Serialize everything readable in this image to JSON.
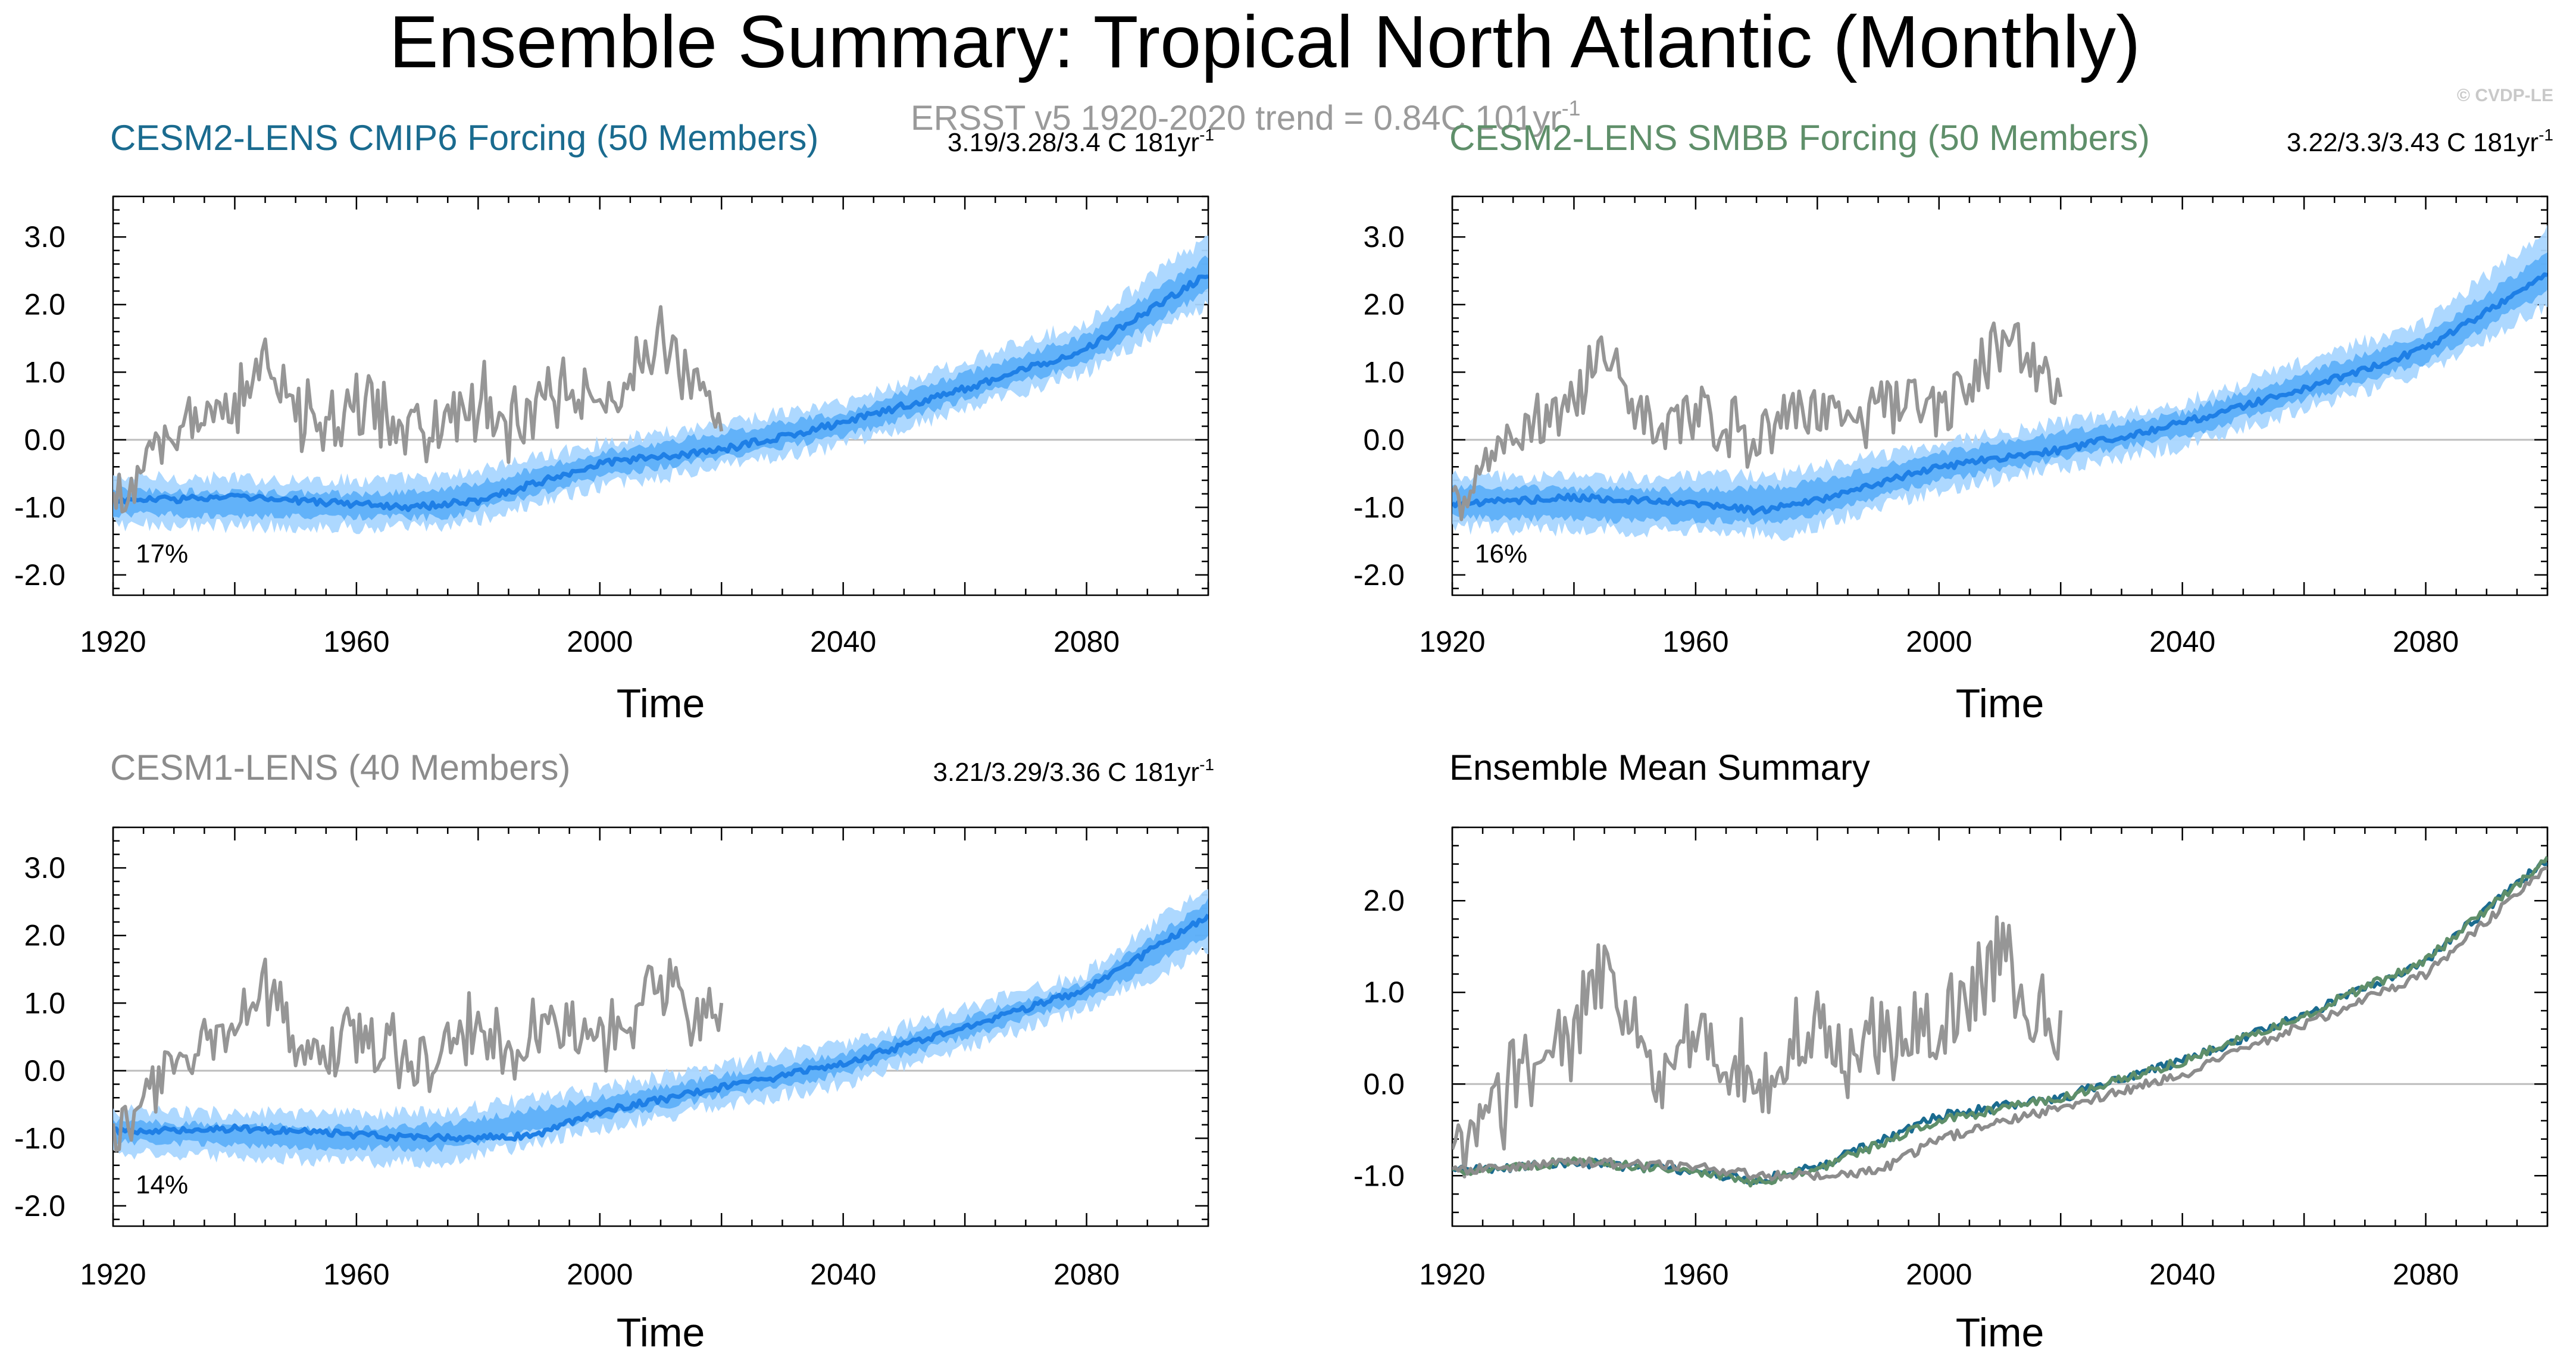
{
  "title": "Ensemble Summary: Tropical North Atlantic (Monthly)",
  "copyright": "© CVDP-LE",
  "observations": {
    "label": "ERSST v5 1920-2020 trend = 0.84C 101yr",
    "label_sup": "-1",
    "color": "#9a9a9a"
  },
  "colors": {
    "spread_outer": "#a9d6ff",
    "spread_inner": "#4aa6f7",
    "ensemble_mean": "#1e7fe6",
    "obs": "#969696",
    "cesm2_cmip6": "#1a6b8f",
    "cesm2_smbb": "#5f8f6a",
    "cesm1": "#8c8c8c",
    "zero_line": "#bdbdbd"
  },
  "chart_data": [
    {
      "type": "line",
      "panel": "top-left",
      "title": "CESM2-LENS CMIP6 Forcing (50 Members)",
      "title_color": "#1a6b8f",
      "trend_text": "3.19/3.28/3.4 C 181yr",
      "trend_sup": "-1",
      "percent_label": "17%",
      "xlabel": "Time",
      "ylabel": "",
      "xlim": [
        1920,
        2100
      ],
      "ylim": [
        -2.3,
        3.6
      ],
      "xticks": [
        1920,
        1960,
        2000,
        2040,
        2080
      ],
      "yticks": [
        -2.0,
        -1.0,
        0.0,
        1.0,
        2.0,
        3.0
      ],
      "ytick_labels": [
        "-2.0",
        "-1.0",
        "0.0",
        "1.0",
        "2.0",
        "3.0"
      ],
      "series": [
        {
          "name": "ensemble spread (full range)",
          "kind": "band",
          "x": [
            1920,
            1960,
            1975,
            2000,
            2040,
            2080,
            2100
          ],
          "lower": [
            -1.25,
            -1.3,
            -1.3,
            -0.7,
            -0.1,
            1.0,
            2.0
          ],
          "upper": [
            -0.55,
            -0.6,
            -0.55,
            -0.05,
            0.55,
            1.75,
            3.0
          ]
        },
        {
          "name": "ensemble spread (10th-90th)",
          "kind": "band",
          "x": [
            1920,
            1960,
            1975,
            2000,
            2040,
            2080,
            2100
          ],
          "lower": [
            -1.1,
            -1.15,
            -1.15,
            -0.55,
            0.05,
            1.15,
            2.2
          ],
          "upper": [
            -0.75,
            -0.8,
            -0.75,
            -0.2,
            0.4,
            1.55,
            2.7
          ]
        },
        {
          "name": "ensemble mean",
          "kind": "line",
          "x": [
            1920,
            1940,
            1960,
            1970,
            1980,
            2000,
            2020,
            2040,
            2060,
            2080,
            2100
          ],
          "values": [
            -0.9,
            -0.85,
            -0.95,
            -1.0,
            -0.9,
            -0.35,
            -0.15,
            0.25,
            0.75,
            1.35,
            2.45
          ]
        },
        {
          "name": "ERSST v5",
          "kind": "obs",
          "x": [
            1920,
            1925,
            1930,
            1935,
            1940,
            1945,
            1950,
            1955,
            1960,
            1965,
            1970,
            1975,
            1980,
            1985,
            1990,
            1995,
            2000,
            2005,
            2010,
            2015,
            2020
          ],
          "values": [
            -0.9,
            -0.5,
            0.1,
            0.3,
            0.5,
            1.3,
            0.4,
            0.1,
            0.5,
            0.3,
            0.0,
            0.3,
            0.6,
            0.2,
            0.5,
            0.7,
            0.5,
            0.8,
            1.5,
            0.9,
            0.6
          ]
        }
      ]
    },
    {
      "type": "line",
      "panel": "top-right",
      "title": "CESM2-LENS SMBB Forcing (50 Members)",
      "title_color": "#5f8f6a",
      "trend_text": "3.22/3.3/3.43 C 181yr",
      "trend_sup": "-1",
      "percent_label": "16%",
      "xlabel": "Time",
      "ylabel": "",
      "xlim": [
        1920,
        2100
      ],
      "ylim": [
        -2.3,
        3.6
      ],
      "xticks": [
        1920,
        1960,
        2000,
        2040,
        2080
      ],
      "yticks": [
        -2.0,
        -1.0,
        0.0,
        1.0,
        2.0,
        3.0
      ],
      "ytick_labels": [
        "-2.0",
        "-1.0",
        "0.0",
        "1.0",
        "2.0",
        "3.0"
      ],
      "series": [
        {
          "name": "ensemble spread (full range)",
          "kind": "band",
          "x": [
            1920,
            1960,
            1975,
            2000,
            2040,
            2080,
            2100
          ],
          "lower": [
            -1.3,
            -1.35,
            -1.4,
            -0.75,
            -0.1,
            1.0,
            2.0
          ],
          "upper": [
            -0.55,
            -0.55,
            -0.5,
            -0.05,
            0.55,
            1.75,
            3.1
          ]
        },
        {
          "name": "ensemble spread (10th-90th)",
          "kind": "band",
          "x": [
            1920,
            1960,
            1975,
            2000,
            2040,
            2080,
            2100
          ],
          "lower": [
            -1.15,
            -1.2,
            -1.2,
            -0.6,
            0.05,
            1.15,
            2.2
          ],
          "upper": [
            -0.7,
            -0.75,
            -0.7,
            -0.2,
            0.4,
            1.55,
            2.75
          ]
        },
        {
          "name": "ensemble mean",
          "kind": "line",
          "x": [
            1920,
            1940,
            1960,
            1970,
            1980,
            2000,
            2020,
            2040,
            2060,
            2080,
            2100
          ],
          "values": [
            -0.95,
            -0.85,
            -0.95,
            -1.05,
            -0.9,
            -0.4,
            -0.15,
            0.25,
            0.75,
            1.35,
            2.45
          ]
        },
        {
          "name": "ERSST v5",
          "kind": "obs",
          "x": [
            1920,
            1925,
            1930,
            1935,
            1940,
            1945,
            1950,
            1955,
            1960,
            1965,
            1970,
            1975,
            1980,
            1985,
            1990,
            1995,
            2000,
            2005,
            2010,
            2015,
            2020
          ],
          "values": [
            -0.9,
            -0.5,
            0.1,
            0.3,
            0.5,
            1.3,
            0.4,
            0.1,
            0.5,
            0.3,
            0.0,
            0.3,
            0.6,
            0.2,
            0.5,
            0.7,
            0.5,
            0.8,
            1.5,
            0.9,
            0.6
          ]
        }
      ]
    },
    {
      "type": "line",
      "panel": "bottom-left",
      "title": "CESM1-LENS (40 Members)",
      "title_color": "#8c8c8c",
      "trend_text": "3.21/3.29/3.36 C 181yr",
      "trend_sup": "-1",
      "percent_label": "14%",
      "xlabel": "Time",
      "ylabel": "",
      "xlim": [
        1920,
        2100
      ],
      "ylim": [
        -2.3,
        3.6
      ],
      "xticks": [
        1920,
        1960,
        2000,
        2040,
        2080
      ],
      "yticks": [
        -2.0,
        -1.0,
        0.0,
        1.0,
        2.0,
        3.0
      ],
      "ytick_labels": [
        "-2.0",
        "-1.0",
        "0.0",
        "1.0",
        "2.0",
        "3.0"
      ],
      "series": [
        {
          "name": "ensemble spread (full range)",
          "kind": "band",
          "x": [
            1920,
            1960,
            1975,
            2000,
            2040,
            2080,
            2100
          ],
          "lower": [
            -1.2,
            -1.35,
            -1.35,
            -0.85,
            -0.2,
            0.9,
            1.8
          ],
          "upper": [
            -0.6,
            -0.65,
            -0.6,
            -0.25,
            0.4,
            1.45,
            2.75
          ]
        },
        {
          "name": "ensemble spread (10th-90th)",
          "kind": "band",
          "x": [
            1920,
            1960,
            1975,
            2000,
            2040,
            2080,
            2100
          ],
          "lower": [
            -1.05,
            -1.15,
            -1.15,
            -0.7,
            -0.05,
            1.05,
            2.0
          ],
          "upper": [
            -0.75,
            -0.85,
            -0.8,
            -0.4,
            0.25,
            1.3,
            2.5
          ]
        },
        {
          "name": "ensemble mean",
          "kind": "line",
          "x": [
            1920,
            1940,
            1960,
            1970,
            1980,
            1990,
            2000,
            2020,
            2040,
            2060,
            2080,
            2100
          ],
          "values": [
            -0.9,
            -0.85,
            -0.95,
            -1.0,
            -1.0,
            -0.95,
            -0.6,
            -0.25,
            0.1,
            0.65,
            1.2,
            2.3
          ]
        },
        {
          "name": "ERSST v5",
          "kind": "obs",
          "x": [
            1920,
            1925,
            1930,
            1935,
            1940,
            1945,
            1950,
            1955,
            1960,
            1965,
            1970,
            1975,
            1980,
            1985,
            1990,
            1995,
            2000,
            2005,
            2010,
            2015,
            2020
          ],
          "values": [
            -0.9,
            -0.5,
            0.1,
            0.3,
            0.5,
            1.3,
            0.4,
            0.1,
            0.5,
            0.3,
            0.0,
            0.3,
            0.6,
            0.2,
            0.5,
            0.7,
            0.5,
            0.8,
            1.5,
            0.9,
            0.6
          ]
        }
      ]
    },
    {
      "type": "line",
      "panel": "bottom-right",
      "title": "Ensemble Mean Summary",
      "title_color": "#000000",
      "xlabel": "Time",
      "ylabel": "",
      "xlim": [
        1920,
        2100
      ],
      "ylim": [
        -1.55,
        2.8
      ],
      "xticks": [
        1920,
        1960,
        2000,
        2040,
        2080
      ],
      "yticks": [
        -1.0,
        0.0,
        1.0,
        2.0
      ],
      "ytick_labels": [
        "-1.0",
        "0.0",
        "1.0",
        "2.0"
      ],
      "series": [
        {
          "name": "ERSST v5",
          "kind": "obs",
          "x": [
            1920,
            1925,
            1930,
            1935,
            1940,
            1945,
            1950,
            1955,
            1960,
            1965,
            1970,
            1975,
            1980,
            1985,
            1990,
            1995,
            2000,
            2005,
            2010,
            2015,
            2020
          ],
          "values": [
            -0.9,
            -0.5,
            0.1,
            0.3,
            0.5,
            1.3,
            0.4,
            0.1,
            0.5,
            0.3,
            0.0,
            0.3,
            0.6,
            0.2,
            0.5,
            0.7,
            0.5,
            0.8,
            1.5,
            0.9,
            0.6
          ]
        },
        {
          "name": "CESM2-LENS CMIP6 Forcing ensemble mean",
          "kind": "line",
          "color": "#1a6b8f",
          "x": [
            1920,
            1940,
            1960,
            1970,
            1980,
            2000,
            2020,
            2040,
            2060,
            2080,
            2100
          ],
          "values": [
            -0.95,
            -0.85,
            -0.95,
            -1.05,
            -0.9,
            -0.35,
            -0.15,
            0.25,
            0.75,
            1.35,
            2.45
          ]
        },
        {
          "name": "CESM2-LENS SMBB Forcing ensemble mean",
          "kind": "line",
          "color": "#5f8f6a",
          "x": [
            1920,
            1940,
            1960,
            1970,
            1980,
            2000,
            2020,
            2040,
            2060,
            2080,
            2100
          ],
          "values": [
            -0.95,
            -0.85,
            -0.95,
            -1.08,
            -0.92,
            -0.4,
            -0.15,
            0.25,
            0.75,
            1.35,
            2.45
          ]
        },
        {
          "name": "CESM1-LENS ensemble mean",
          "kind": "line",
          "color": "#8c8c8c",
          "x": [
            1920,
            1940,
            1960,
            1970,
            1980,
            1990,
            2000,
            2020,
            2040,
            2060,
            2080,
            2100
          ],
          "values": [
            -0.95,
            -0.85,
            -0.9,
            -1.0,
            -1.0,
            -0.95,
            -0.6,
            -0.25,
            0.1,
            0.65,
            1.2,
            2.35
          ]
        }
      ]
    }
  ]
}
